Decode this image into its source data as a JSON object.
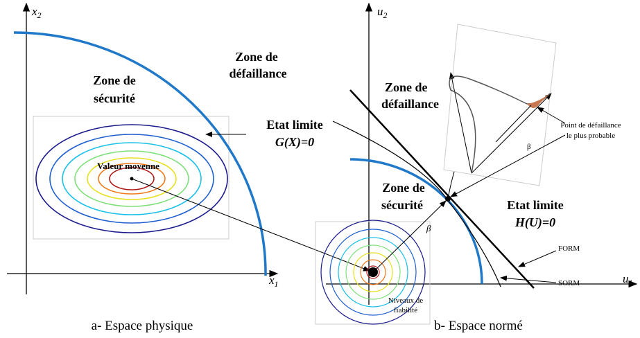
{
  "left": {
    "axis_x": {
      "base": "x",
      "sub": "1"
    },
    "axis_y": {
      "base": "x",
      "sub": "2"
    },
    "zone_safe": [
      "Zone de",
      "sécurité"
    ],
    "zone_fail": [
      "Zone de",
      "défaillance"
    ],
    "limit_state": "Etat limite",
    "limit_equation": "G(X)=0",
    "mean_label": "Valeur moyenne",
    "caption": "a- Espace physique"
  },
  "right": {
    "axis_x": {
      "base": "u",
      "sub": "1"
    },
    "axis_y": {
      "base": "u",
      "sub": "2"
    },
    "zone_fail": [
      "Zone de",
      "défaillance"
    ],
    "zone_safe": [
      "Zone de",
      "sécurité"
    ],
    "limit_state": "Etat limite",
    "limit_equation": "H(U)=0",
    "form": "FORM",
    "sorm": "SORM",
    "beta_labels": [
      "β",
      "β"
    ],
    "mpp_label": [
      "Point de défaillance",
      "le plus probable"
    ],
    "levels_label": [
      "Niveaux de",
      "fiabilité"
    ],
    "caption": "b- Espace normé"
  }
}
